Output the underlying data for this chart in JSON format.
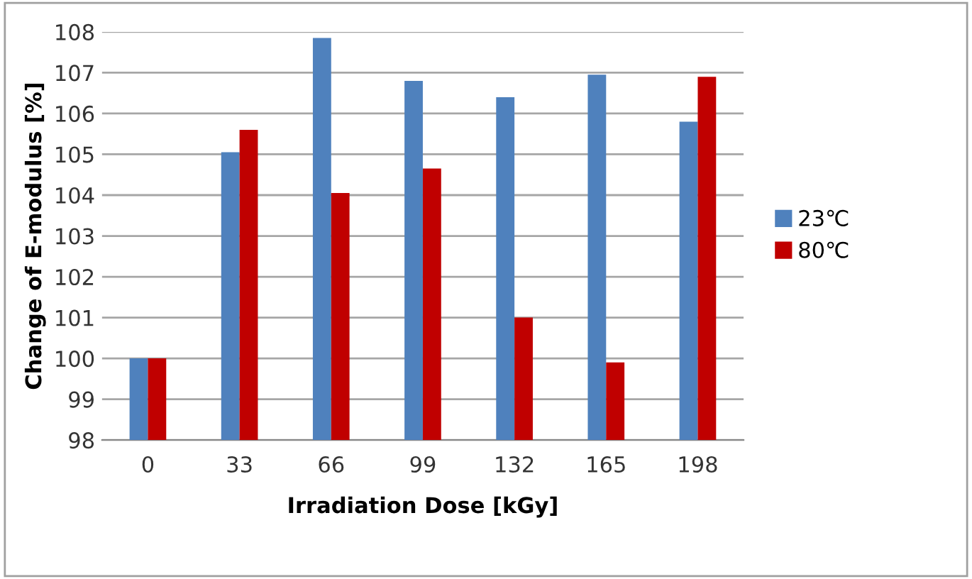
{
  "chart_data": {
    "type": "bar",
    "xlabel": "Irradiation Dose [kGy]",
    "ylabel": "Change of E-modulus [%]",
    "categories": [
      "0",
      "33",
      "66",
      "99",
      "132",
      "165",
      "198"
    ],
    "series": [
      {
        "name": "23℃",
        "color": "#4f81bd",
        "values": [
          100,
          105.05,
          107.85,
          106.8,
          106.4,
          106.95,
          105.8
        ]
      },
      {
        "name": "80℃",
        "color": "#c00000",
        "values": [
          100,
          105.6,
          104.05,
          104.65,
          101.0,
          99.9,
          106.9
        ]
      }
    ],
    "ylim": [
      98,
      108
    ],
    "yticks": [
      98,
      99,
      100,
      101,
      102,
      103,
      104,
      105,
      106,
      107,
      108
    ],
    "grid": "y",
    "legend": "right"
  }
}
